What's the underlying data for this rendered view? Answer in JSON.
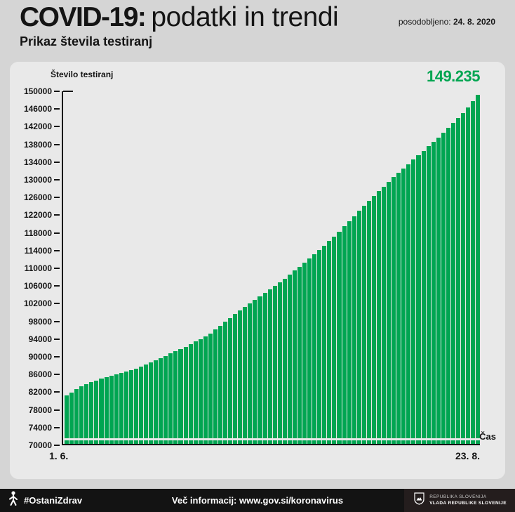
{
  "header": {
    "title_bold": "COVID-19:",
    "title_rest": "podatki in trendi",
    "updated_label": "posodobljeno:",
    "updated_date": "24. 8. 2020",
    "subtitle": "Prikaz števila testiranj"
  },
  "chart": {
    "y_axis_title": "Število testiranj",
    "final_value_label": "149.235",
    "x_start_label": "1. 6.",
    "x_end_label": "23. 8.",
    "x_axis_title": "Čas",
    "bar_color": "#00a551",
    "y_ticks": [
      150000,
      146000,
      142000,
      138000,
      134000,
      130000,
      126000,
      122000,
      118000,
      114000,
      110000,
      106000,
      102000,
      98000,
      94000,
      90000,
      86000,
      82000,
      78000,
      74000,
      70000
    ]
  },
  "chart_data": {
    "type": "bar",
    "title": "Prikaz števila testiranj",
    "ylabel": "Število testiranj",
    "xlabel": "Čas",
    "ylim": [
      70000,
      150000
    ],
    "y_tick_step": 4000,
    "grid": false,
    "legend": false,
    "x_axis_labels_shown": [
      "1. 6.",
      "23. 8."
    ],
    "last_value_label": "149.235",
    "x": [
      "1. 6.",
      "2. 6.",
      "3. 6.",
      "4. 6.",
      "5. 6.",
      "6. 6.",
      "7. 6.",
      "8. 6.",
      "9. 6.",
      "10. 6.",
      "11. 6.",
      "12. 6.",
      "13. 6.",
      "14. 6.",
      "15. 6.",
      "16. 6.",
      "17. 6.",
      "18. 6.",
      "19. 6.",
      "20. 6.",
      "21. 6.",
      "22. 6.",
      "23. 6.",
      "24. 6.",
      "25. 6.",
      "26. 6.",
      "27. 6.",
      "28. 6.",
      "29. 6.",
      "30. 6.",
      "1. 7.",
      "2. 7.",
      "3. 7.",
      "4. 7.",
      "5. 7.",
      "6. 7.",
      "7. 7.",
      "8. 7.",
      "9. 7.",
      "10. 7.",
      "11. 7.",
      "12. 7.",
      "13. 7.",
      "14. 7.",
      "15. 7.",
      "16. 7.",
      "17. 7.",
      "18. 7.",
      "19. 7.",
      "20. 7.",
      "21. 7.",
      "22. 7.",
      "23. 7.",
      "24. 7.",
      "25. 7.",
      "26. 7.",
      "27. 7.",
      "28. 7.",
      "29. 7.",
      "30. 7.",
      "31. 7.",
      "1. 8.",
      "2. 8.",
      "3. 8.",
      "4. 8.",
      "5. 8.",
      "6. 8.",
      "7. 8.",
      "8. 8.",
      "9. 8.",
      "10. 8.",
      "11. 8.",
      "12. 8.",
      "13. 8.",
      "14. 8.",
      "15. 8.",
      "16. 8.",
      "17. 8.",
      "18. 8.",
      "19. 8.",
      "20. 8.",
      "21. 8.",
      "22. 8.",
      "23. 8."
    ],
    "values": [
      81000,
      81700,
      82400,
      83000,
      83500,
      84000,
      84400,
      84800,
      85200,
      85500,
      85800,
      86100,
      86400,
      86700,
      87000,
      87500,
      88000,
      88500,
      89000,
      89500,
      90000,
      90500,
      91000,
      91500,
      92000,
      92600,
      93200,
      93800,
      94400,
      95000,
      95900,
      96800,
      97700,
      98600,
      99500,
      100300,
      101100,
      101900,
      102700,
      103500,
      104300,
      105100,
      105900,
      106700,
      107500,
      108400,
      109300,
      110200,
      111100,
      112000,
      113000,
      114000,
      115000,
      116000,
      117000,
      118200,
      119400,
      120500,
      121700,
      122900,
      124000,
      125100,
      126200,
      127300,
      128400,
      129500,
      130500,
      131500,
      132500,
      133500,
      134500,
      135500,
      136500,
      137500,
      138500,
      139500,
      140600,
      141700,
      142800,
      143900,
      145000,
      146400,
      147800,
      149235
    ]
  },
  "footer": {
    "hashtag": "#OstaniZdrav",
    "info": "Več informacij: www.gov.si/koronavirus",
    "gov_line1": "REPUBLIKA SLOVENIJA",
    "gov_line2": "VLADA REPUBLIKE SLOVENIJE"
  }
}
